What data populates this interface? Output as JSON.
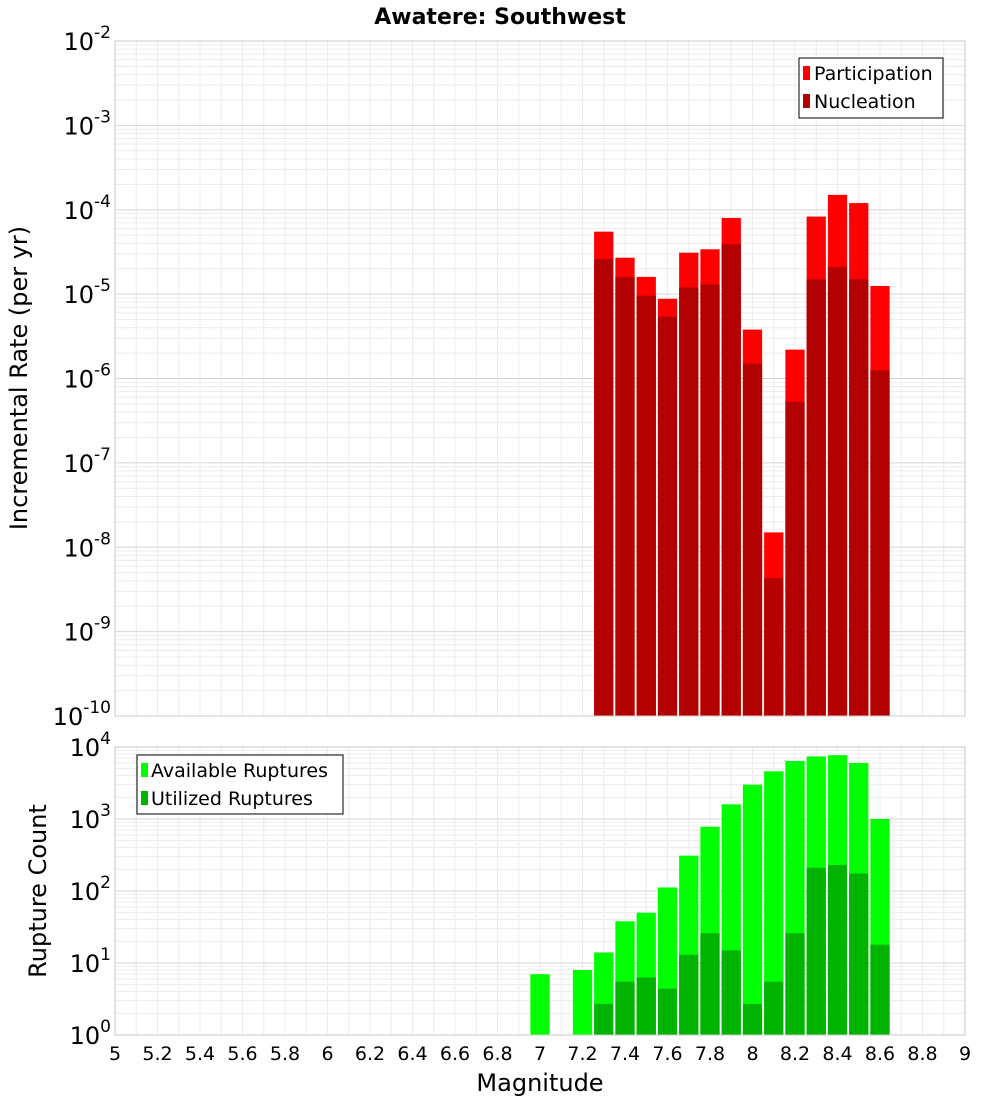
{
  "chart_data": [
    {
      "type": "bar",
      "title": "Awatere: Southwest",
      "xlabel": "",
      "ylabel": "Incremental Rate (per yr)",
      "yscale": "log",
      "ylim_exponents": [
        -10,
        -2
      ],
      "ytick_base": "10",
      "yticks_exponent_labels": [
        "-10",
        "-9",
        "-8",
        "-7",
        "-6",
        "-5",
        "-4",
        "-3",
        "-2"
      ],
      "legend_position": "top-right",
      "grid": true,
      "x": [
        7.3,
        7.4,
        7.5,
        7.6,
        7.7,
        7.8,
        7.9,
        8.0,
        8.1,
        8.2,
        8.3,
        8.4,
        8.5,
        8.6
      ],
      "series": [
        {
          "name": "Participation",
          "color": "#ff0000",
          "values": [
            5.5e-05,
            2.7e-05,
            1.6e-05,
            8.8e-06,
            3.1e-05,
            3.4e-05,
            8e-05,
            3.8e-06,
            1.5e-08,
            2.2e-06,
            8.3e-05,
            0.00015,
            0.00012,
            1.25e-05
          ]
        },
        {
          "name": "Nucleation",
          "color": "#b30000",
          "values": [
            2.6e-05,
            1.6e-05,
            9.6e-06,
            5.4e-06,
            1.2e-05,
            1.3e-05,
            3.9e-05,
            1.5e-06,
            4.3e-09,
            5.3e-07,
            1.5e-05,
            2.1e-05,
            1.5e-05,
            1.25e-06
          ]
        }
      ]
    },
    {
      "type": "bar",
      "title": "",
      "xlabel": "Magnitude",
      "ylabel": "Rupture Count",
      "yscale": "log",
      "ylim_exponents": [
        0,
        4
      ],
      "ytick_base": "10",
      "yticks_exponent_labels": [
        "0",
        "1",
        "2",
        "3",
        "4"
      ],
      "legend_position": "top-left",
      "grid": true,
      "xlim": [
        5,
        9
      ],
      "xticks": [
        "5",
        "5.2",
        "5.4",
        "5.6",
        "5.8",
        "6",
        "6.2",
        "6.4",
        "6.6",
        "6.8",
        "7",
        "7.2",
        "7.4",
        "7.6",
        "7.8",
        "8",
        "8.2",
        "8.4",
        "8.6",
        "8.8",
        "9"
      ],
      "x": [
        7.0,
        7.2,
        7.3,
        7.4,
        7.5,
        7.6,
        7.7,
        7.8,
        7.9,
        8.0,
        8.1,
        8.2,
        8.3,
        8.4,
        8.5,
        8.6
      ],
      "series": [
        {
          "name": "Available Ruptures",
          "color": "#00ff00",
          "values": [
            7,
            8,
            14,
            38,
            50,
            112,
            310,
            780,
            1600,
            3000,
            4600,
            6400,
            7400,
            7700,
            6000,
            1000
          ]
        },
        {
          "name": "Utilized Ruptures",
          "color": "#00b300",
          "values": [
            0,
            0,
            2.7,
            5.5,
            6.3,
            4.4,
            13,
            26,
            15,
            2.7,
            5.5,
            26,
            210,
            230,
            175,
            18
          ]
        }
      ]
    }
  ]
}
